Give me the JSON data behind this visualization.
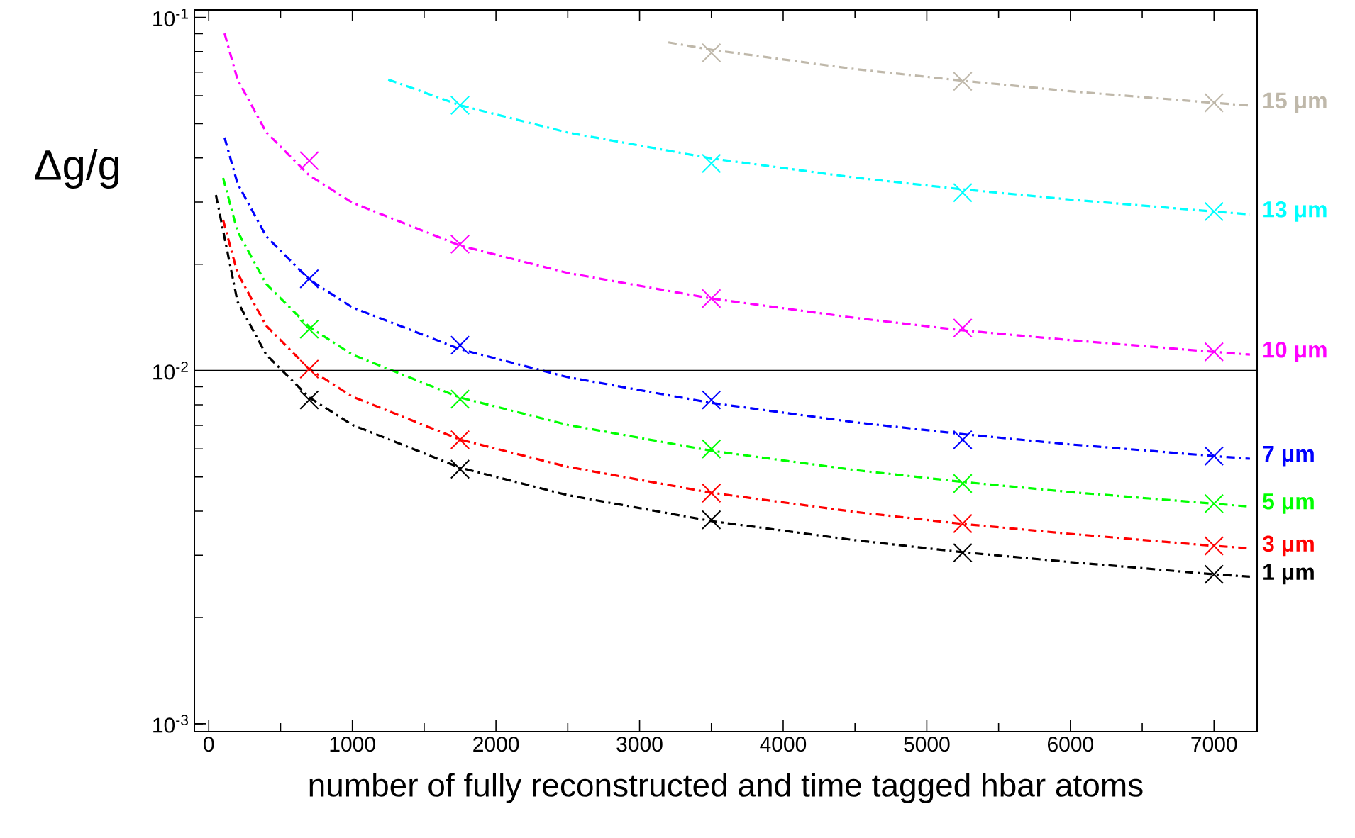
{
  "chart_data": {
    "type": "scatter",
    "xlabel": "number of fully reconstructed and time tagged hbar atoms",
    "ylabel": "Δg/g",
    "log": "y",
    "xlim": [
      -100,
      7300
    ],
    "ylim": [
      0.00095,
      0.105
    ],
    "xticks": [
      0,
      1000,
      2000,
      3000,
      4000,
      5000,
      6000,
      7000
    ],
    "yticks": [
      {
        "value": 0.001,
        "label": "10$^{-3}$"
      },
      {
        "value": 0.01,
        "label": "10$^{-2}$"
      },
      {
        "value": 0.1,
        "label": "10$^{-1}$"
      }
    ],
    "marker": "cross",
    "legend": "right",
    "ref_lines": [
      {
        "axis": "y",
        "value": 0.01,
        "color": "#000000"
      }
    ],
    "series": [
      {
        "type": "line",
        "color": "#000000",
        "line_style": "dashed",
        "marker": "none",
        "x": [
          50,
          200,
          400,
          700,
          1000,
          1750,
          2500,
          3500,
          4500,
          5250,
          6000,
          7000,
          7250
        ],
        "values": [
          0.0314,
          0.0157,
          0.0111,
          0.00839,
          0.00702,
          0.00531,
          0.00444,
          0.00375,
          0.00331,
          0.00306,
          0.00287,
          0.00265,
          0.00261
        ]
      },
      {
        "type": "line",
        "color": "#ff0000",
        "line_style": "dashed",
        "marker": "none",
        "x": [
          100,
          200,
          400,
          700,
          1000,
          1750,
          2500,
          3500,
          4500,
          5250,
          6000,
          7000,
          7250
        ],
        "values": [
          0.0267,
          0.0189,
          0.0134,
          0.0101,
          0.00844,
          0.00638,
          0.00534,
          0.00451,
          0.00398,
          0.00368,
          0.00345,
          0.00319,
          0.00314
        ]
      },
      {
        "type": "line",
        "color": "#00ff00",
        "line_style": "dashed",
        "marker": "none",
        "x": [
          100,
          200,
          400,
          700,
          1000,
          1750,
          2500,
          3500,
          4500,
          5250,
          6000,
          7000,
          7250
        ],
        "values": [
          0.0351,
          0.0248,
          0.0176,
          0.0133,
          0.0111,
          0.00839,
          0.00702,
          0.00593,
          0.00523,
          0.00484,
          0.00453,
          0.0042,
          0.00412
        ]
      },
      {
        "type": "line",
        "color": "#0000ff",
        "line_style": "dashed",
        "marker": "none",
        "x": [
          110,
          200,
          400,
          700,
          1000,
          1750,
          2500,
          3500,
          4500,
          5250,
          6000,
          7000,
          7250
        ],
        "values": [
          0.0457,
          0.0339,
          0.024,
          0.0181,
          0.0151,
          0.0115,
          0.00958,
          0.0081,
          0.00714,
          0.00661,
          0.00618,
          0.00573,
          0.00563
        ]
      },
      {
        "type": "line",
        "color": "#ff00ff",
        "line_style": "dashed",
        "marker": "none",
        "x": [
          110,
          200,
          400,
          700,
          1000,
          1750,
          2500,
          3500,
          4500,
          5250,
          6000,
          7000,
          7250
        ],
        "values": [
          0.0901,
          0.0668,
          0.0473,
          0.0357,
          0.0299,
          0.0226,
          0.0189,
          0.016,
          0.0141,
          0.013,
          0.0122,
          0.0113,
          0.0111
        ]
      },
      {
        "type": "line",
        "color": "#00ffff",
        "line_style": "dashed",
        "marker": "none",
        "x": [
          1250,
          1750,
          2500,
          3500,
          4500,
          5250,
          6000,
          7000,
          7250
        ],
        "values": [
          0.0667,
          0.0564,
          0.0472,
          0.0399,
          0.0352,
          0.0326,
          0.0305,
          0.0282,
          0.0277
        ]
      },
      {
        "type": "line",
        "color": "#bfb8aa",
        "line_style": "dashed",
        "marker": "none",
        "x": [
          3200,
          3500,
          4500,
          5250,
          6000,
          7000,
          7250
        ],
        "values": [
          0.085,
          0.081,
          0.0714,
          0.0662,
          0.0618,
          0.0573,
          0.0563
        ]
      },
      {
        "name": "1 μm",
        "color": "#000000",
        "x": [
          700,
          1750,
          3500,
          5250,
          7000
        ],
        "values": [
          0.00826,
          0.00526,
          0.00378,
          0.00305,
          0.00265
        ]
      },
      {
        "name": "3 μm",
        "color": "#ff0000",
        "x": [
          700,
          1750,
          3500,
          5250,
          7000
        ],
        "values": [
          0.0101,
          0.00637,
          0.0045,
          0.00369,
          0.00319
        ]
      },
      {
        "name": "5 μm",
        "color": "#00ff00",
        "x": [
          700,
          1750,
          3500,
          5250,
          7000
        ],
        "values": [
          0.0131,
          0.0083,
          0.006,
          0.00479,
          0.0042
        ]
      },
      {
        "name": "7 μm",
        "color": "#0000ff",
        "x": [
          700,
          1750,
          3500,
          5250,
          7000
        ],
        "values": [
          0.0182,
          0.0118,
          0.00826,
          0.00637,
          0.00573
        ]
      },
      {
        "name": "10 μm",
        "color": "#ff00ff",
        "x": [
          700,
          1750,
          3500,
          5250,
          7000
        ],
        "values": [
          0.0393,
          0.0228,
          0.016,
          0.0132,
          0.0113
        ]
      },
      {
        "name": "13 μm",
        "color": "#00ffff",
        "x": [
          1750,
          3500,
          5250,
          7000
        ],
        "values": [
          0.0564,
          0.0386,
          0.0319,
          0.0282
        ]
      },
      {
        "name": "15 μm",
        "color": "#bfb8aa",
        "x": [
          3500,
          5250,
          7000
        ],
        "values": [
          0.0794,
          0.0659,
          0.0573
        ]
      }
    ]
  }
}
